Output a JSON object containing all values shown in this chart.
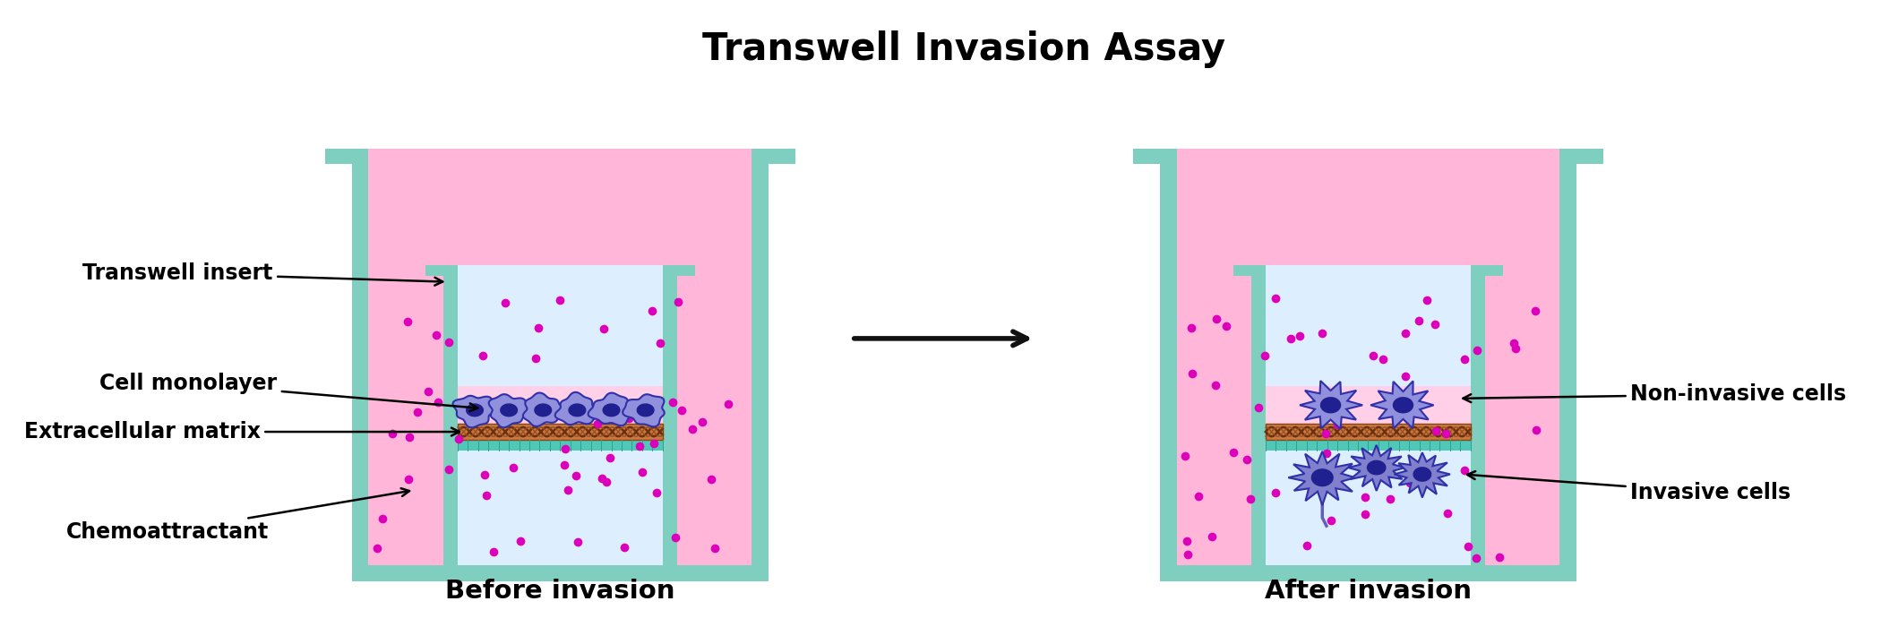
{
  "title": "Transwell Invasion Assay",
  "title_fontsize": 30,
  "title_fontweight": "bold",
  "label_before": "Before invasion",
  "label_after": "After invasion",
  "label_fontsize": 21,
  "label_fontweight": "bold",
  "annotation_fontsize": 17,
  "annotation_fontweight": "bold",
  "colors": {
    "teal": "#7ecfc0",
    "teal_dark": "#5ab5a5",
    "pink_light": "#ffb6d9",
    "pink_medium": "#f5a0c8",
    "pink_insert": "#ffd0e8",
    "clear": "#e0f0ff",
    "clear_insert": "#ddeeff",
    "ecm_brown": "#c87840",
    "ecm_stroke": "#8b4513",
    "membrane_teal": "#50c8b8",
    "cell_fill": "#8080cc",
    "cell_fill2": "#9090dd",
    "cell_stroke": "#3030aa",
    "cell_nucleus": "#202090",
    "dot_color": "#dd00bb",
    "background": "#ffffff",
    "arrow_color": "#111111",
    "white": "#ffffff"
  },
  "figsize": [
    21,
    7
  ]
}
